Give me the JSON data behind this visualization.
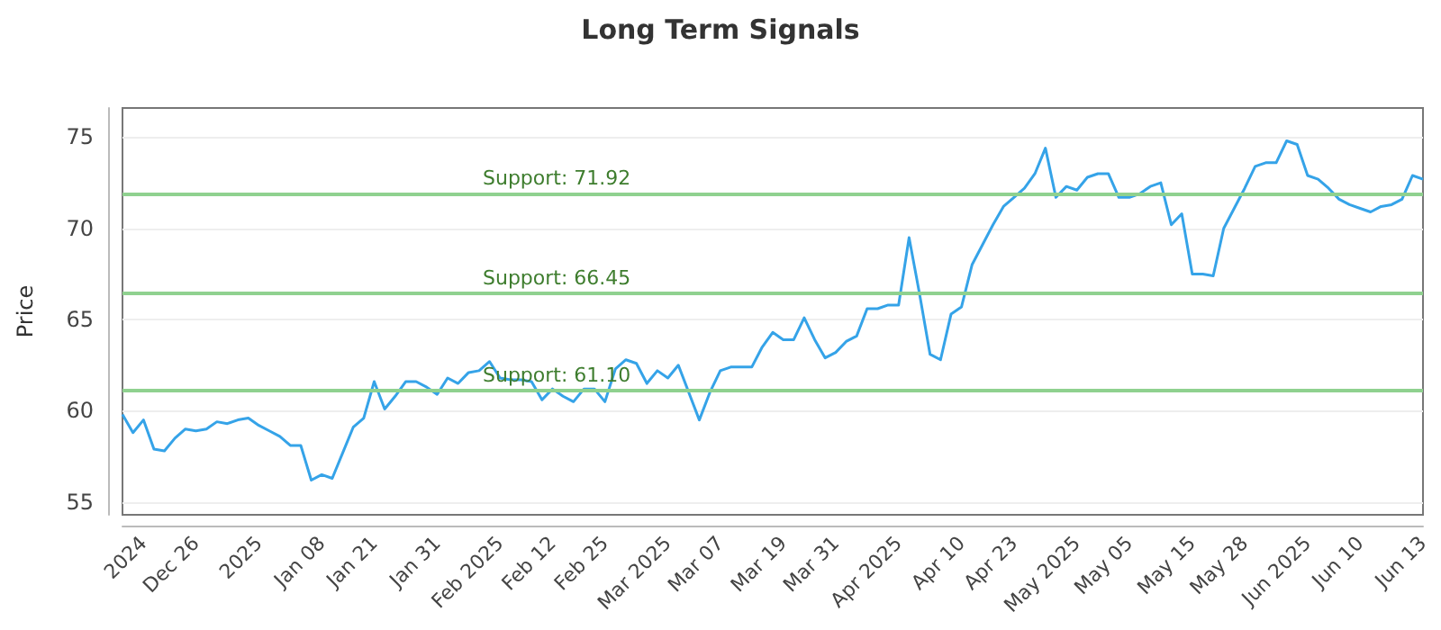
{
  "chart_data": {
    "type": "line",
    "title": "Long Term Signals",
    "ylabel": "Price",
    "categories": [
      null,
      null,
      "2024",
      null,
      null,
      null,
      null,
      "Dec 26",
      null,
      null,
      null,
      null,
      null,
      "2025",
      null,
      null,
      null,
      null,
      null,
      "Jan 08",
      null,
      null,
      null,
      null,
      "Jan 21",
      null,
      null,
      null,
      null,
      null,
      "Jan 31",
      null,
      null,
      null,
      null,
      null,
      "Feb 2025",
      null,
      null,
      null,
      null,
      "Feb 12",
      null,
      null,
      null,
      null,
      "Feb 25",
      null,
      null,
      null,
      null,
      null,
      "Mar 2025",
      null,
      null,
      null,
      null,
      "Mar 07",
      null,
      null,
      null,
      null,
      null,
      "Mar 19",
      null,
      null,
      null,
      null,
      "Mar 31",
      null,
      null,
      null,
      null,
      null,
      "Apr 2025",
      null,
      null,
      null,
      null,
      null,
      "Apr 10",
      null,
      null,
      null,
      null,
      "Apr 23",
      null,
      null,
      null,
      null,
      null,
      "May 2025",
      null,
      null,
      null,
      null,
      "May 05",
      null,
      null,
      null,
      null,
      null,
      "May 15",
      null,
      null,
      null,
      null,
      "May 28",
      null,
      null,
      null,
      null,
      null,
      "Jun 2025",
      null,
      null,
      null,
      null,
      "Jun 10",
      null,
      null,
      null,
      null,
      null,
      "Jun 13"
    ],
    "series": [
      {
        "color": "#35a3e8",
        "values": [
          59.8,
          58.8,
          59.5,
          57.9,
          57.8,
          58.5,
          59.0,
          58.9,
          59.0,
          59.4,
          59.3,
          59.5,
          59.6,
          59.2,
          58.9,
          58.6,
          58.1,
          58.1,
          56.2,
          56.5,
          56.3,
          57.7,
          59.1,
          59.6,
          61.6,
          60.1,
          60.8,
          61.6,
          61.6,
          61.3,
          60.9,
          61.8,
          61.5,
          62.1,
          62.2,
          62.7,
          61.8,
          61.7,
          61.7,
          61.6,
          60.6,
          61.2,
          60.8,
          60.5,
          61.2,
          61.2,
          60.5,
          62.3,
          62.8,
          62.6,
          61.5,
          62.2,
          61.8,
          62.5,
          61.0,
          59.5,
          61.0,
          62.2,
          62.4,
          62.4,
          62.4,
          63.5,
          64.3,
          63.9,
          63.9,
          65.1,
          63.9,
          62.9,
          63.2,
          63.8,
          64.1,
          65.6,
          65.6,
          65.8,
          65.8,
          69.5,
          66.4,
          63.1,
          62.8,
          65.3,
          65.7,
          68.0,
          69.1,
          70.2,
          71.2,
          71.7,
          72.2,
          73.0,
          74.4,
          71.7,
          72.3,
          72.1,
          72.8,
          73.0,
          73.0,
          71.7,
          71.7,
          71.9,
          72.3,
          72.5,
          70.2,
          70.8,
          67.5,
          67.5,
          67.4,
          70.0,
          71.1,
          72.2,
          73.4,
          73.6,
          73.6,
          74.8,
          74.6,
          72.9,
          72.7,
          72.2,
          71.6,
          71.3,
          71.1,
          70.9,
          71.2,
          71.3,
          71.6,
          72.9,
          72.7
        ]
      }
    ],
    "ylim": [
      54.3,
      76.6
    ],
    "yticks": [
      55,
      60,
      65,
      70,
      75
    ],
    "grid": "y",
    "marker": "none",
    "ref_lines": [
      {
        "axis": "y",
        "value": 71.92,
        "label": "Support: 71.92",
        "color": "#8fd18f"
      },
      {
        "axis": "y",
        "value": 66.45,
        "label": "Support: 66.45",
        "color": "#8fd18f"
      },
      {
        "axis": "y",
        "value": 61.1,
        "label": "Support: 61.10",
        "color": "#8fd18f"
      }
    ]
  }
}
